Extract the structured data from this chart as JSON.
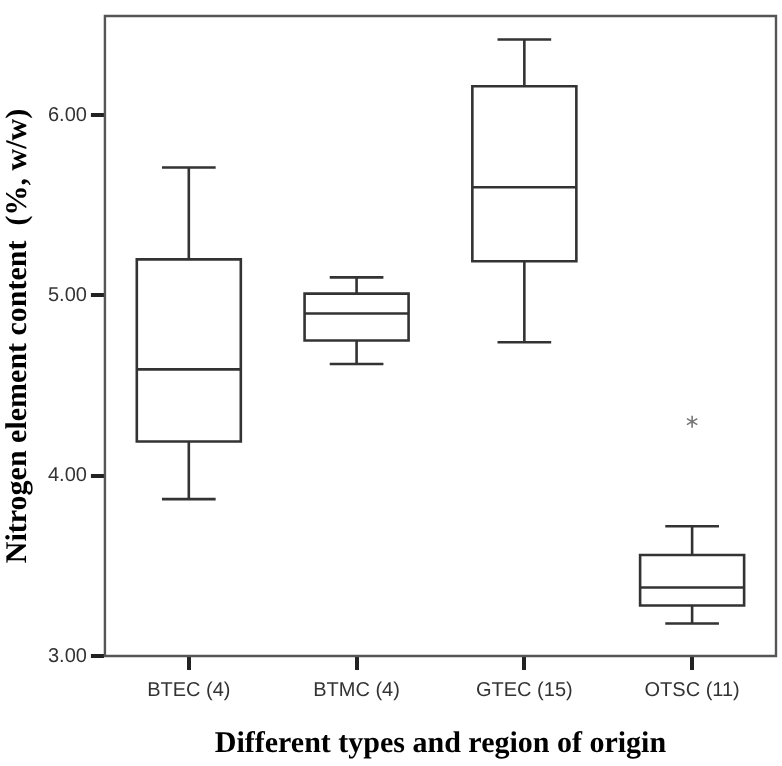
{
  "chart_data": {
    "type": "box",
    "xlabel": "Different types and region of origin",
    "ylabel": "Nitrogen element content  (%, w/w)",
    "categories": [
      "BTEC (4)",
      "BTMC (4)",
      "GTEC (15)",
      "OTSC (11)"
    ],
    "boxes": [
      {
        "low": 3.87,
        "q1": 4.19,
        "median": 4.59,
        "q3": 5.2,
        "high": 5.71
      },
      {
        "low": 4.62,
        "q1": 4.75,
        "median": 4.9,
        "q3": 5.01,
        "high": 5.1
      },
      {
        "low": 4.74,
        "q1": 5.19,
        "median": 5.6,
        "q3": 6.16,
        "high": 6.42
      },
      {
        "low": 3.18,
        "q1": 3.28,
        "median": 3.38,
        "q3": 3.56,
        "high": 3.72,
        "outliers": [
          4.3
        ]
      }
    ],
    "ylim": [
      3,
      6.55
    ],
    "yticks": [
      {
        "value": 3,
        "label": "3.00"
      },
      {
        "value": 4,
        "label": "4.00"
      },
      {
        "value": 5,
        "label": "5.00"
      },
      {
        "value": 6,
        "label": "6.00"
      }
    ],
    "grid": false
  }
}
